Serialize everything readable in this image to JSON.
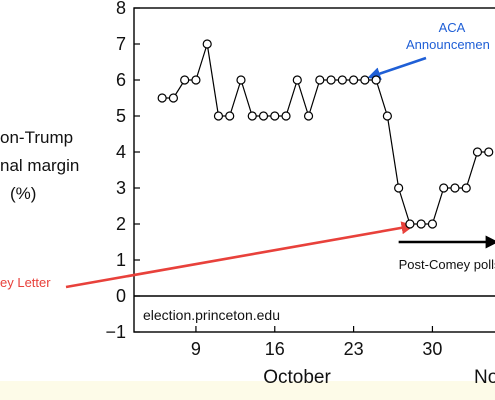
{
  "chart_data": {
    "type": "line",
    "xlabel": "October",
    "xlabel_right_fragment": "No",
    "ylabel_lines": [
      "on-Trump",
      "nal margin",
      "(%)"
    ],
    "ylim": [
      -1,
      8
    ],
    "xlim": [
      3.5,
      36
    ],
    "yticks": [
      -1,
      0,
      1,
      2,
      3,
      4,
      5,
      6,
      7,
      8
    ],
    "xticks": [
      9,
      16,
      23,
      30
    ],
    "grid": false,
    "series": [
      {
        "x": [
          6,
          7,
          8,
          9,
          10,
          11,
          12,
          13,
          14,
          15,
          16,
          17,
          18,
          19,
          20,
          21,
          22,
          23,
          24,
          25,
          26,
          27,
          28,
          29,
          30,
          31,
          32,
          33,
          34,
          35
        ],
        "y": [
          5.5,
          5.5,
          6,
          6,
          7,
          5,
          5,
          6,
          5,
          5,
          5,
          5,
          6,
          5,
          6,
          6,
          6,
          6,
          6,
          6,
          5,
          3,
          2,
          2,
          2,
          3,
          3,
          3,
          4,
          4
        ]
      }
    ],
    "annotations": {
      "aca": {
        "lines": [
          "ACA",
          "Announcemen"
        ],
        "color": "#1f5fd6",
        "point": [
          24,
          6
        ]
      },
      "comey": {
        "text": "ey Letter",
        "color": "#e8413b",
        "point": [
          28,
          2
        ]
      },
      "post_comey": {
        "text": "Post-Comey polls",
        "from_x": 27,
        "to_x": 36,
        "y": 1.5
      },
      "source": {
        "text": "election.princeton.edu"
      }
    }
  }
}
